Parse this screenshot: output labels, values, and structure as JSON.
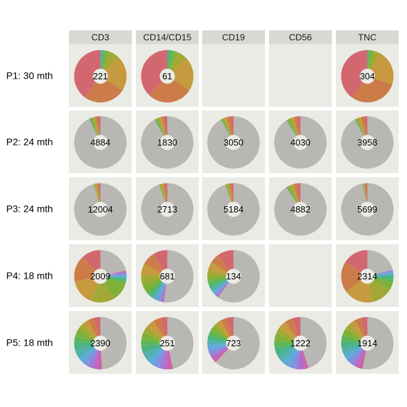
{
  "chart_data": {
    "type": "pie",
    "style": "faceted donut charts",
    "columns": [
      "CD3",
      "CD14/CD15",
      "CD19",
      "CD56",
      "TNC"
    ],
    "rows": [
      "P1: 30 mth",
      "P2: 24 mth",
      "P3: 24 mth",
      "P4: 18 mth",
      "P5: 18 mth"
    ],
    "colors": {
      "panel_bg": "#EBEBE6",
      "strip_bg": "#D9D9D4",
      "dominant_gray": "#B8B7B3",
      "center": "#EBEBE6",
      "palette": [
        "#D3676F",
        "#CC7C48",
        "#C69A3E",
        "#A3A834",
        "#7FB13A",
        "#5DB654",
        "#4BB382",
        "#52B0AE",
        "#5DABD6",
        "#7C95DF",
        "#9B7DD9",
        "#BA69C6",
        "#CD61A8"
      ]
    },
    "cells": [
      [
        {
          "n": "221",
          "fractions": [
            0.4,
            0.26,
            0.22,
            0.06,
            0.025,
            0.015,
            0.01,
            0.01
          ]
        },
        {
          "n": "61",
          "fractions": [
            0.38,
            0.28,
            0.21,
            0.06,
            0.03,
            0.02,
            0.02
          ]
        },
        null,
        null,
        {
          "n": "304",
          "fractions": [
            0.4,
            0.3,
            0.22,
            0.04,
            0.02,
            0.01,
            0.01
          ]
        }
      ],
      [
        {
          "n": "4884",
          "gray": 0.93,
          "fractions": [
            0.015,
            0.015,
            0.01,
            0.01,
            0.01,
            0.01
          ]
        },
        {
          "n": "1830",
          "gray": 0.92,
          "fractions": [
            0.02,
            0.015,
            0.015,
            0.01,
            0.01,
            0.01
          ]
        },
        {
          "n": "3050",
          "gray": 0.92,
          "fractions": [
            0.02,
            0.02,
            0.015,
            0.01,
            0.01,
            0.005
          ]
        },
        {
          "n": "4030",
          "gray": 0.91,
          "fractions": [
            0.02,
            0.02,
            0.015,
            0.015,
            0.01,
            0.01
          ]
        },
        {
          "n": "3958",
          "gray": 0.92,
          "fractions": [
            0.02,
            0.02,
            0.015,
            0.01,
            0.01,
            0.005
          ]
        }
      ],
      [
        {
          "n": "12004",
          "gray": 0.96,
          "fractions": [
            0.01,
            0.01,
            0.008,
            0.006,
            0.006
          ]
        },
        {
          "n": "2713",
          "gray": 0.95,
          "fractions": [
            0.012,
            0.012,
            0.01,
            0.008,
            0.008
          ]
        },
        {
          "n": "5184",
          "gray": 0.95,
          "fractions": [
            0.012,
            0.012,
            0.01,
            0.008,
            0.008
          ]
        },
        {
          "n": "4882",
          "gray": 0.91,
          "fractions": [
            0.02,
            0.02,
            0.015,
            0.015,
            0.01,
            0.01
          ]
        },
        {
          "n": "5699",
          "gray": 0.97,
          "fractions": [
            0.008,
            0.007,
            0.006,
            0.005,
            0.004
          ]
        }
      ],
      [
        {
          "n": "2009",
          "gray": 0.22,
          "fractions": [
            0.12,
            0.17,
            0.16,
            0.15,
            0.12,
            0.02,
            0.015,
            0.01,
            0.01,
            0.01,
            0.01,
            0.005,
            0.005
          ]
        },
        {
          "n": "681",
          "gray": 0.52,
          "fractions": [
            0.09,
            0.08,
            0.07,
            0.06,
            0.05,
            0.03,
            0.02,
            0.02,
            0.02,
            0.02,
            0.01,
            0.005,
            0.005
          ]
        },
        {
          "n": "134",
          "gray": 0.6,
          "fractions": [
            0.1,
            0.06,
            0.05,
            0.04,
            0.03,
            0.03,
            0.02,
            0.02,
            0.02,
            0.01,
            0.01,
            0.005,
            0.005
          ]
        },
        null,
        {
          "n": "2314",
          "gray": 0.21,
          "fractions": [
            0.16,
            0.19,
            0.18,
            0.13,
            0.05,
            0.02,
            0.02,
            0.015,
            0.01,
            0.01,
            0.005
          ]
        }
      ],
      [
        {
          "n": "2390",
          "gray": 0.5,
          "fractions": [
            0.04,
            0.04,
            0.04,
            0.04,
            0.05,
            0.04,
            0.05,
            0.05,
            0.04,
            0.04,
            0.03,
            0.03,
            0.03
          ]
        },
        {
          "n": "251",
          "gray": 0.47,
          "fractions": [
            0.04,
            0.05,
            0.05,
            0.04,
            0.05,
            0.04,
            0.05,
            0.05,
            0.04,
            0.04,
            0.03,
            0.03,
            0.03
          ]
        },
        {
          "n": "723",
          "gray": 0.62,
          "fractions": [
            0.04,
            0.04,
            0.03,
            0.03,
            0.03,
            0.03,
            0.03,
            0.03,
            0.03,
            0.03,
            0.02,
            0.02,
            0.02
          ]
        },
        {
          "n": "1222",
          "gray": 0.45,
          "fractions": [
            0.05,
            0.05,
            0.05,
            0.04,
            0.05,
            0.04,
            0.05,
            0.05,
            0.05,
            0.04,
            0.03,
            0.03,
            0.02
          ]
        },
        {
          "n": "1914",
          "gray": 0.53,
          "fractions": [
            0.04,
            0.04,
            0.04,
            0.04,
            0.04,
            0.04,
            0.04,
            0.04,
            0.04,
            0.03,
            0.03,
            0.02,
            0.03
          ]
        }
      ]
    ]
  }
}
